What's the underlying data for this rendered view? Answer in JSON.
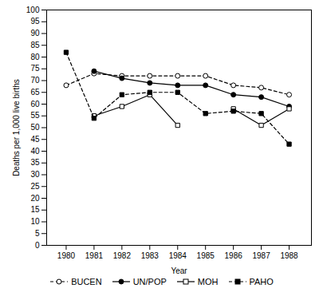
{
  "chart_data": {
    "type": "line",
    "x": [
      1980,
      1981,
      1982,
      1983,
      1984,
      1985,
      1986,
      1987,
      1988
    ],
    "xlabel": "Year",
    "ylabel": "Deaths per 1,000 live births",
    "xlim": [
      1979.3,
      1988.8
    ],
    "xticks": [
      1980,
      1981,
      1982,
      1983,
      1984,
      1985,
      1986,
      1987,
      1988
    ],
    "ylim": [
      0,
      100
    ],
    "yticks": [
      0,
      5,
      10,
      15,
      20,
      25,
      30,
      35,
      40,
      45,
      50,
      55,
      60,
      65,
      70,
      75,
      80,
      85,
      90,
      95,
      100
    ],
    "grid": false,
    "legend": "bottom",
    "series": [
      {
        "name": "BUCEN",
        "color": "#000000",
        "marker": "open-circle",
        "line_style": "dashed",
        "values": [
          68,
          73,
          72,
          72,
          72,
          72,
          68,
          67,
          64
        ]
      },
      {
        "name": "UN/POP",
        "color": "#000000",
        "marker": "circle",
        "line_style": "solid",
        "values": [
          null,
          74,
          71,
          69,
          68,
          68,
          64,
          63,
          59
        ]
      },
      {
        "name": "MOH",
        "color": "#000000",
        "marker": "open-square",
        "line_style": "solid",
        "values": [
          null,
          55,
          59,
          64,
          51,
          null,
          58,
          51,
          58
        ]
      },
      {
        "name": "PAHO",
        "color": "#000000",
        "marker": "square",
        "line_style": "dashed",
        "values": [
          82,
          54,
          64,
          65,
          65,
          56,
          57,
          56,
          43
        ]
      }
    ]
  }
}
